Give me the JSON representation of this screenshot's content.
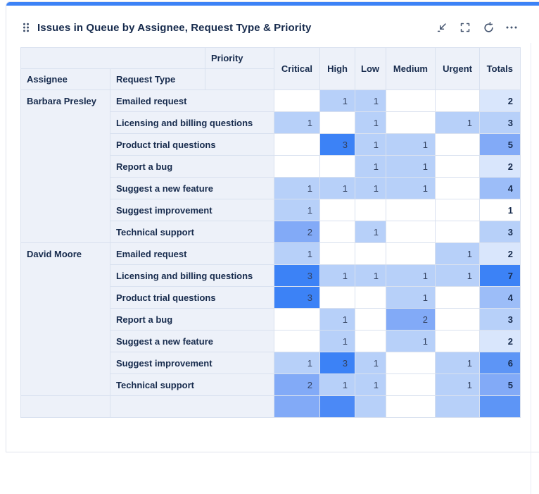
{
  "widget": {
    "title": "Issues in Queue by Assignee, Request Type & Priority",
    "accent_color": "#3c82f6",
    "toolbar": {
      "collapse_icon": "collapse-arrow",
      "fullscreen_icon": "fullscreen-brackets",
      "refresh_icon": "refresh-circular-arrow",
      "more_icon": "ellipsis"
    }
  },
  "table": {
    "priority_label": "Priority",
    "assignee_label": "Assignee",
    "request_type_label": "Request Type",
    "priority_columns": [
      "Critical",
      "High",
      "Low",
      "Medium",
      "Urgent"
    ],
    "totals_label": "Totals",
    "groups": [
      {
        "assignee": "Barbara Presley",
        "rows": [
          {
            "request_type": "Emailed request",
            "values": [
              null,
              1,
              1,
              null,
              null
            ],
            "total": 2
          },
          {
            "request_type": "Licensing and billing questions",
            "values": [
              1,
              null,
              1,
              null,
              1
            ],
            "total": 3
          },
          {
            "request_type": "Product trial questions",
            "values": [
              null,
              3,
              1,
              1,
              null
            ],
            "total": 5
          },
          {
            "request_type": "Report a bug",
            "values": [
              null,
              null,
              1,
              1,
              null
            ],
            "total": 2
          },
          {
            "request_type": "Suggest a new feature",
            "values": [
              1,
              1,
              1,
              1,
              null
            ],
            "total": 4
          },
          {
            "request_type": "Suggest improvement",
            "values": [
              1,
              null,
              null,
              null,
              null
            ],
            "total": 1
          },
          {
            "request_type": "Technical support",
            "values": [
              2,
              null,
              1,
              null,
              null
            ],
            "total": 3
          }
        ]
      },
      {
        "assignee": "David Moore",
        "rows": [
          {
            "request_type": "Emailed request",
            "values": [
              1,
              null,
              null,
              null,
              1
            ],
            "total": 2
          },
          {
            "request_type": "Licensing and billing questions",
            "values": [
              3,
              1,
              1,
              1,
              1
            ],
            "total": 7
          },
          {
            "request_type": "Product trial questions",
            "values": [
              3,
              null,
              null,
              1,
              null
            ],
            "total": 4
          },
          {
            "request_type": "Report a bug",
            "values": [
              null,
              1,
              null,
              2,
              null
            ],
            "total": 3
          },
          {
            "request_type": "Suggest a new feature",
            "values": [
              null,
              1,
              null,
              1,
              null
            ],
            "total": 2
          },
          {
            "request_type": "Suggest improvement",
            "values": [
              1,
              3,
              1,
              null,
              1
            ],
            "total": 6
          },
          {
            "request_type": "Technical support",
            "values": [
              2,
              1,
              1,
              null,
              1
            ],
            "total": 5
          }
        ]
      }
    ],
    "clipped_row": {
      "cell_colors": [
        "#82aaf7",
        "#4b89f6",
        "#b7d0f9",
        "#ffffff",
        "#b7d0f9"
      ],
      "total_color": "#5d95f6"
    }
  },
  "heatmap": {
    "priority_colors": {
      "1": "#b7d0f9",
      "2": "#82aaf7",
      "3": "#3c82f6"
    },
    "totals_colors": {
      "1": "#ffffff",
      "2": "#d9e6fc",
      "3": "#b7d0f9",
      "4": "#9cbdf8",
      "5": "#82aaf7",
      "6": "#5d95f6",
      "7": "#3c82f6"
    }
  }
}
